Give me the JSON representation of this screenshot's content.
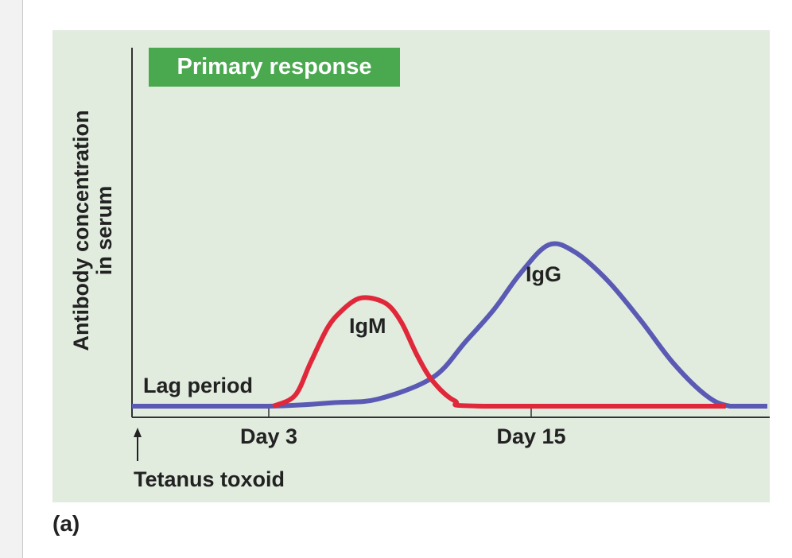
{
  "figure_label": "(a)",
  "chart_data": {
    "type": "line",
    "title": "Primary response",
    "ylabel": [
      "Antibody concentration",
      "in serum"
    ],
    "xlabel": "",
    "x_ticks": [
      {
        "day": 3,
        "label": "Day 3"
      },
      {
        "day": 15,
        "label": "Day 15"
      }
    ],
    "annotations": {
      "lag": "Lag period",
      "start": "Tetanus toxoid"
    },
    "grid": false,
    "series": [
      {
        "name": "IgM",
        "color": "#e0283a",
        "points": [
          [
            3.2,
            0
          ],
          [
            4.2,
            0.03
          ],
          [
            4.9,
            0.12
          ],
          [
            5.7,
            0.22
          ],
          [
            6.4,
            0.27
          ],
          [
            7.1,
            0.3
          ],
          [
            7.8,
            0.3
          ],
          [
            8.5,
            0.28
          ],
          [
            9.1,
            0.23
          ],
          [
            9.8,
            0.14
          ],
          [
            10.5,
            0.07
          ],
          [
            11.5,
            0.015
          ],
          [
            12.8,
            0
          ],
          [
            23.9,
            0
          ]
        ]
      },
      {
        "name": "IgG",
        "color": "#5a5ab4",
        "points": [
          [
            0,
            0
          ],
          [
            3,
            0
          ],
          [
            6,
            0.01
          ],
          [
            8,
            0.02
          ],
          [
            10.5,
            0.08
          ],
          [
            12,
            0.18
          ],
          [
            13.3,
            0.27
          ],
          [
            14.5,
            0.37
          ],
          [
            15.8,
            0.45
          ],
          [
            17,
            0.43
          ],
          [
            18.5,
            0.35
          ],
          [
            20,
            0.24
          ],
          [
            21.5,
            0.12
          ],
          [
            23,
            0.03
          ],
          [
            24.1,
            0
          ],
          [
            25.8,
            0
          ]
        ]
      }
    ]
  }
}
